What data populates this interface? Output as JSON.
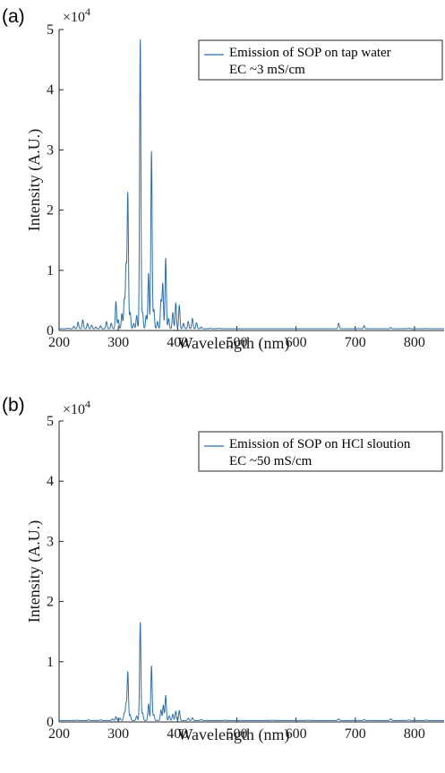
{
  "colors": {
    "series": "#2e6fad",
    "axis": "#262626",
    "legend_border": "#262626"
  },
  "chart_data": [
    {
      "type": "line",
      "panel_label": "(a)",
      "xlabel": "Wavelength (nm)",
      "ylabel": "Intensity (A.U.)",
      "y_multiplier": "×10",
      "y_multiplier_exp": "4",
      "xlim": [
        200,
        850
      ],
      "ylim": [
        0,
        50000
      ],
      "x_ticks": [
        200,
        300,
        400,
        500,
        600,
        700,
        800
      ],
      "y_ticks": [
        0,
        1,
        2,
        3,
        4,
        5
      ],
      "grid": false,
      "legend_position": "top-right",
      "legend": [
        "Emission of SOP on tap water",
        "EC ~3 mS/cm"
      ],
      "baseline": 300,
      "peaks": [
        [
          215,
          400
        ],
        [
          225,
          700
        ],
        [
          232,
          1400
        ],
        [
          240,
          1800
        ],
        [
          248,
          1200
        ],
        [
          255,
          900
        ],
        [
          262,
          600
        ],
        [
          270,
          800
        ],
        [
          280,
          1500
        ],
        [
          288,
          1200
        ],
        [
          296,
          4800
        ],
        [
          300,
          1800
        ],
        [
          306,
          2800
        ],
        [
          310,
          5000
        ],
        [
          313,
          10500
        ],
        [
          316,
          22700
        ],
        [
          320,
          3000
        ],
        [
          326,
          1200
        ],
        [
          331,
          2500
        ],
        [
          337,
          48300
        ],
        [
          341,
          3000
        ],
        [
          347,
          2500
        ],
        [
          351,
          9500
        ],
        [
          356,
          29700
        ],
        [
          360,
          3500
        ],
        [
          366,
          1500
        ],
        [
          372,
          5000
        ],
        [
          375,
          7800
        ],
        [
          380,
          12000
        ],
        [
          385,
          2000
        ],
        [
          392,
          3000
        ],
        [
          397,
          4600
        ],
        [
          403,
          4200
        ],
        [
          410,
          1200
        ],
        [
          418,
          1500
        ],
        [
          425,
          2000
        ],
        [
          432,
          1300
        ],
        [
          440,
          600
        ],
        [
          455,
          400
        ],
        [
          470,
          400
        ],
        [
          520,
          300
        ],
        [
          560,
          300
        ],
        [
          600,
          300
        ],
        [
          640,
          300
        ],
        [
          672,
          1200
        ],
        [
          705,
          350
        ],
        [
          715,
          800
        ],
        [
          760,
          500
        ],
        [
          790,
          400
        ],
        [
          820,
          350
        ]
      ]
    },
    {
      "type": "line",
      "panel_label": "(b)",
      "xlabel": "Wavelength (nm)",
      "ylabel": "Intensity (A.U.)",
      "y_multiplier": "×10",
      "y_multiplier_exp": "4",
      "xlim": [
        200,
        850
      ],
      "ylim": [
        0,
        50000
      ],
      "x_ticks": [
        200,
        300,
        400,
        500,
        600,
        700,
        800
      ],
      "y_ticks": [
        0,
        1,
        2,
        3,
        4,
        5
      ],
      "grid": false,
      "legend_position": "top-right",
      "legend": [
        "Emission of SOP on HCl sloution",
        "EC ~50 mS/cm"
      ],
      "baseline": 250,
      "peaks": [
        [
          230,
          300
        ],
        [
          250,
          350
        ],
        [
          270,
          350
        ],
        [
          290,
          500
        ],
        [
          296,
          900
        ],
        [
          303,
          600
        ],
        [
          310,
          1500
        ],
        [
          313,
          3000
        ],
        [
          316,
          8300
        ],
        [
          320,
          1200
        ],
        [
          331,
          1000
        ],
        [
          337,
          16500
        ],
        [
          341,
          1500
        ],
        [
          351,
          3000
        ],
        [
          356,
          9300
        ],
        [
          360,
          1200
        ],
        [
          372,
          2000
        ],
        [
          376,
          2800
        ],
        [
          380,
          4400
        ],
        [
          386,
          1000
        ],
        [
          392,
          1300
        ],
        [
          397,
          1800
        ],
        [
          403,
          1900
        ],
        [
          418,
          600
        ],
        [
          425,
          700
        ],
        [
          440,
          400
        ],
        [
          480,
          300
        ],
        [
          560,
          300
        ],
        [
          620,
          300
        ],
        [
          672,
          500
        ],
        [
          715,
          400
        ],
        [
          760,
          500
        ],
        [
          790,
          350
        ],
        [
          820,
          300
        ]
      ]
    }
  ]
}
